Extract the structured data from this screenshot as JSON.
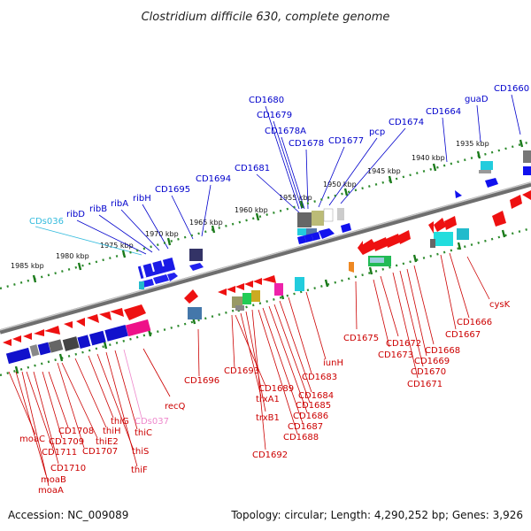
{
  "title": "Clostridium difficile 630, complete genome",
  "footer": {
    "accession": "Accession: NC_009089",
    "summary": "Topology: circular; Length: 4,290,252 bp; Genes: 3,926"
  },
  "colors": {
    "upper_label": "#0000cc",
    "lower_label": "#cc0000",
    "cyan_label": "#33bbdd",
    "pink_label": "#ee88cc",
    "backbone": "#8a8a8a",
    "dotted_line": "#2e8b2e"
  },
  "ticks": [
    "1985 kbp",
    "1980 kbp",
    "1975 kbp",
    "1970 kbp",
    "1965 kbp",
    "1960 kbp",
    "1955 kbp",
    "1950 kbp",
    "1945 kbp",
    "1940 kbp",
    "1935 kbp"
  ],
  "upper_labels": [
    "CDs036",
    "ribD",
    "ribB",
    "ribA",
    "ribH",
    "CD1695",
    "CD1694",
    "CD1681",
    "CD1680",
    "CD1679",
    "CD1678A",
    "CD1678",
    "CD1677",
    "pcp",
    "CD1674",
    "CD1664",
    "guaD",
    "CD1660"
  ],
  "lower_labels": [
    "moaC",
    "moaB",
    "moaA",
    "CD1711",
    "CD1710",
    "CD1709",
    "CD1708",
    "thiE2",
    "CD1707",
    "thiH",
    "thiG",
    "thiS",
    "thiF",
    "thiC",
    "CDs037",
    "recQ",
    "CD1696",
    "CD1693",
    "CD1689",
    "trxA1",
    "trxB1",
    "CD1692",
    "CD1688",
    "CD1687",
    "CD1686",
    "CD1685",
    "CD1684",
    "CD1683",
    "iunH",
    "CD1675",
    "CD1673",
    "CD1672",
    "CD1671",
    "CD1670",
    "CD1669",
    "CD1668",
    "CD1667",
    "CD1666",
    "cysK"
  ]
}
